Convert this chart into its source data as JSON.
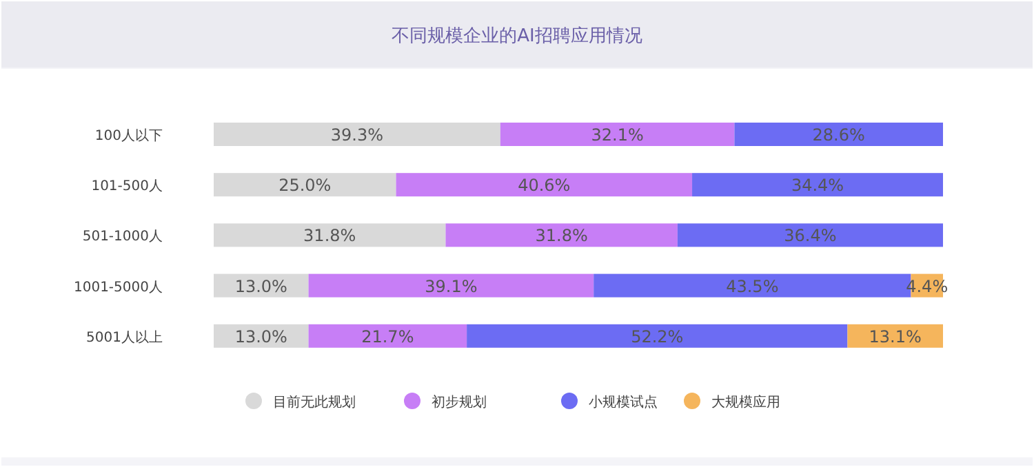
{
  "chart_data": {
    "type": "bar",
    "title": "不同规模企业的AI招聘应用情况",
    "orientation": "horizontal",
    "stacked": true,
    "legend": "bottom",
    "categories": [
      "100人以下",
      "101-500人",
      "501-1000人",
      "1001-5000人",
      "5001人以上"
    ],
    "series": [
      {
        "name": "目前无此规划",
        "color": "#d9d9d9",
        "values": [
          39.3,
          25.0,
          31.8,
          13.0,
          13.0
        ],
        "value_labels": [
          "39.3%",
          "25.0%",
          "31.8%",
          "13.0%",
          "13.0%"
        ]
      },
      {
        "name": "初步规划",
        "color": "#c77ef6",
        "values": [
          32.1,
          40.6,
          31.8,
          39.1,
          21.7
        ],
        "value_labels": [
          "32.1%",
          "40.6%",
          "31.8%",
          "39.1%",
          "21.7%"
        ]
      },
      {
        "name": "小规模试点",
        "color": "#6c6cf3",
        "values": [
          28.6,
          34.4,
          36.4,
          43.5,
          52.2
        ],
        "value_labels": [
          "28.6%",
          "34.4%",
          "36.4%",
          "43.5%",
          "52.2%"
        ]
      },
      {
        "name": "大规模应用",
        "color": "#f5b55c",
        "values": [
          null,
          null,
          null,
          4.4,
          13.1
        ],
        "value_labels": [
          null,
          null,
          null,
          "4.4%",
          "13.1%"
        ]
      }
    ]
  }
}
